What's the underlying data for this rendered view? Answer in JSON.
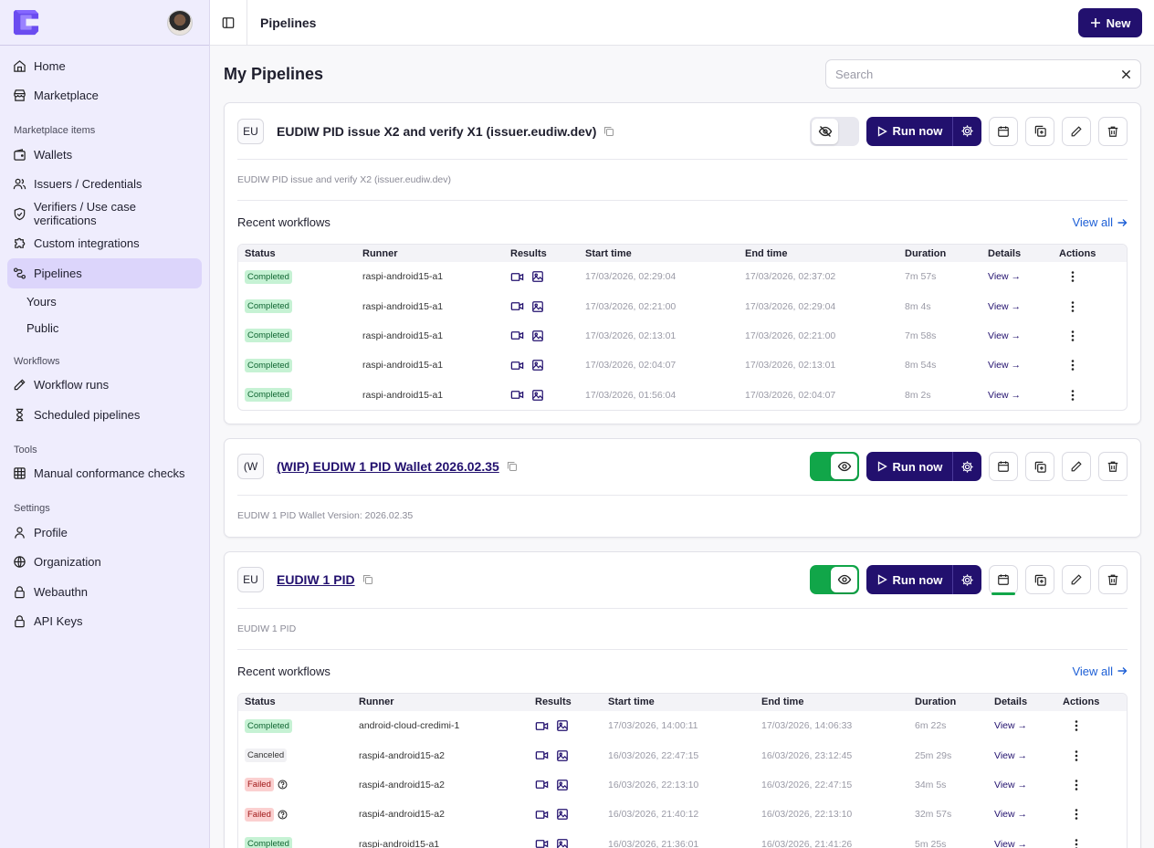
{
  "sidebar": {
    "items_top": [
      {
        "label": "Home",
        "icon": "home-icon"
      },
      {
        "label": "Marketplace",
        "icon": "store-icon"
      }
    ],
    "sections": [
      {
        "title": "Marketplace items"
      },
      {
        "title": "Workflows"
      },
      {
        "title": "Tools"
      },
      {
        "title": "Settings"
      }
    ],
    "marketplace_items": [
      {
        "label": "Wallets"
      },
      {
        "label": "Issuers / Credentials"
      },
      {
        "label": "Verifiers / Use case verifications"
      },
      {
        "label": "Custom integrations"
      },
      {
        "label": "Pipelines"
      }
    ],
    "pipelines_sub": [
      "Yours",
      "Public"
    ],
    "workflows": [
      {
        "label": "Workflow runs"
      },
      {
        "label": "Scheduled pipelines"
      }
    ],
    "tools": [
      {
        "label": "Manual conformance checks"
      }
    ],
    "settings": [
      {
        "label": "Profile"
      },
      {
        "label": "Organization"
      },
      {
        "label": "Webauthn"
      },
      {
        "label": "API Keys"
      }
    ]
  },
  "topbar": {
    "breadcrumb": "Pipelines",
    "new_label": "New"
  },
  "page": {
    "title": "My Pipelines",
    "search_placeholder": "Search"
  },
  "common": {
    "run_now": "Run now",
    "recent_workflows": "Recent workflows",
    "view_all": "View all",
    "view": "View"
  },
  "columns1": [
    "Status",
    "Runner",
    "Results",
    "Start time",
    "End time",
    "Duration",
    "Details",
    "Actions"
  ],
  "pipelines": [
    {
      "badge": "EU",
      "name": "EUDIW PID issue X2 and verify X1 (issuer.eudiw.dev)",
      "description": "EUDIW PID issue and verify X2 (issuer.eudiw.dev)",
      "published": false,
      "runs": [
        {
          "status": "Completed",
          "runner": "raspi-android15-a1",
          "start": "17/03/2026, 02:29:04",
          "end": "17/03/2026, 02:37:02",
          "duration": "7m 57s"
        },
        {
          "status": "Completed",
          "runner": "raspi-android15-a1",
          "start": "17/03/2026, 02:21:00",
          "end": "17/03/2026, 02:29:04",
          "duration": "8m 4s"
        },
        {
          "status": "Completed",
          "runner": "raspi-android15-a1",
          "start": "17/03/2026, 02:13:01",
          "end": "17/03/2026, 02:21:00",
          "duration": "7m 58s"
        },
        {
          "status": "Completed",
          "runner": "raspi-android15-a1",
          "start": "17/03/2026, 02:04:07",
          "end": "17/03/2026, 02:13:01",
          "duration": "8m 54s"
        },
        {
          "status": "Completed",
          "runner": "raspi-android15-a1",
          "start": "17/03/2026, 01:56:04",
          "end": "17/03/2026, 02:04:07",
          "duration": "8m 2s"
        }
      ]
    },
    {
      "badge": "(W",
      "name": "(WIP) EUDIW 1 PID Wallet 2026.02.35",
      "description": "EUDIW 1 PID Wallet Version: 2026.02.35",
      "published": true
    },
    {
      "badge": "EU",
      "name": "EUDIW 1 PID",
      "description": "EUDIW 1 PID",
      "published": true,
      "runs": [
        {
          "status": "Completed",
          "runner": "android-cloud-credimi-1",
          "start": "17/03/2026, 14:00:11",
          "end": "17/03/2026, 14:06:33",
          "duration": "6m 22s"
        },
        {
          "status": "Canceled",
          "runner": "raspi4-android15-a2",
          "start": "16/03/2026, 22:47:15",
          "end": "16/03/2026, 23:12:45",
          "duration": "25m 29s"
        },
        {
          "status": "Failed",
          "runner": "raspi4-android15-a2",
          "start": "16/03/2026, 22:13:10",
          "end": "16/03/2026, 22:47:15",
          "duration": "34m 5s"
        },
        {
          "status": "Failed",
          "runner": "raspi4-android15-a2",
          "start": "16/03/2026, 21:40:12",
          "end": "16/03/2026, 22:13:10",
          "duration": "32m 57s"
        },
        {
          "status": "Completed",
          "runner": "raspi-android15-a1",
          "start": "16/03/2026, 21:36:01",
          "end": "16/03/2026, 21:41:26",
          "duration": "5m 25s"
        }
      ]
    }
  ],
  "colors": {
    "brand": "#22106e",
    "active_green": "#11a649",
    "sidebar_bg": "#efedfd",
    "link_blue": "#1d5fd6"
  }
}
